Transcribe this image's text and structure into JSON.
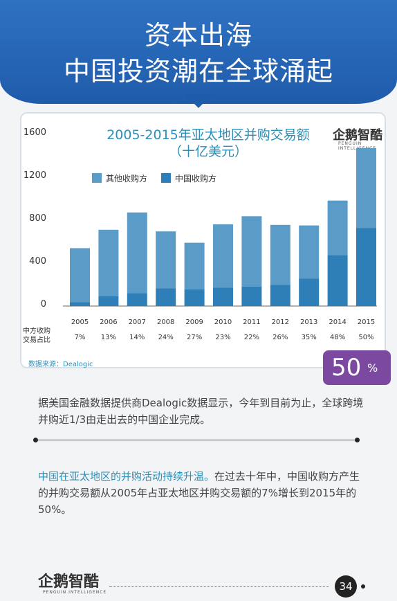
{
  "banner": {
    "line1": "资本出海",
    "line2": "中国投资潮在全球涌起"
  },
  "logo": {
    "text": "企鹅智酷",
    "subtext": "PENGUIN INTELLIGENCE"
  },
  "chart_data": {
    "type": "bar",
    "stacked": true,
    "title": "2005-2015年亚太地区并购交易额",
    "subtitle": "（十亿美元）",
    "categories": [
      "2005",
      "2006",
      "2007",
      "2008",
      "2009",
      "2010",
      "2011",
      "2012",
      "2013",
      "2014",
      "2015"
    ],
    "series": [
      {
        "name": "其他收购方",
        "color": "#5b9bc8",
        "values": [
          500,
          615,
          745,
          525,
          430,
          585,
          650,
          555,
          490,
          505,
          740
        ]
      },
      {
        "name": "中国收购方",
        "color": "#2e7fb8",
        "values": [
          35,
          90,
          120,
          165,
          155,
          170,
          180,
          195,
          255,
          470,
          720
        ]
      }
    ],
    "yticks": [
      0,
      400,
      800,
      1200,
      1600
    ],
    "ylim": [
      0,
      1600
    ],
    "row_label_line1": "中方收购",
    "row_label_line2": "交易占比",
    "shares": [
      "7%",
      "13%",
      "14%",
      "24%",
      "27%",
      "23%",
      "22%",
      "26%",
      "35%",
      "48%",
      "50%"
    ],
    "source": "数据来源：Dealogic"
  },
  "badge": {
    "number": "50",
    "unit": "%"
  },
  "para1": {
    "text": "据美国金融数据提供商Dealogic数据显示，今年到目前为止，全球跨境并购近1/3由走出去的中国企业完成。"
  },
  "para2": {
    "highlight": "中国在亚太地区的并购活动持续升温。",
    "text": "在过去十年中，中国收购方产生的并购交易额从2005年占亚太地区并购交易额的7%增长到2015年的50%。"
  },
  "footer": {
    "page_number": "34"
  }
}
